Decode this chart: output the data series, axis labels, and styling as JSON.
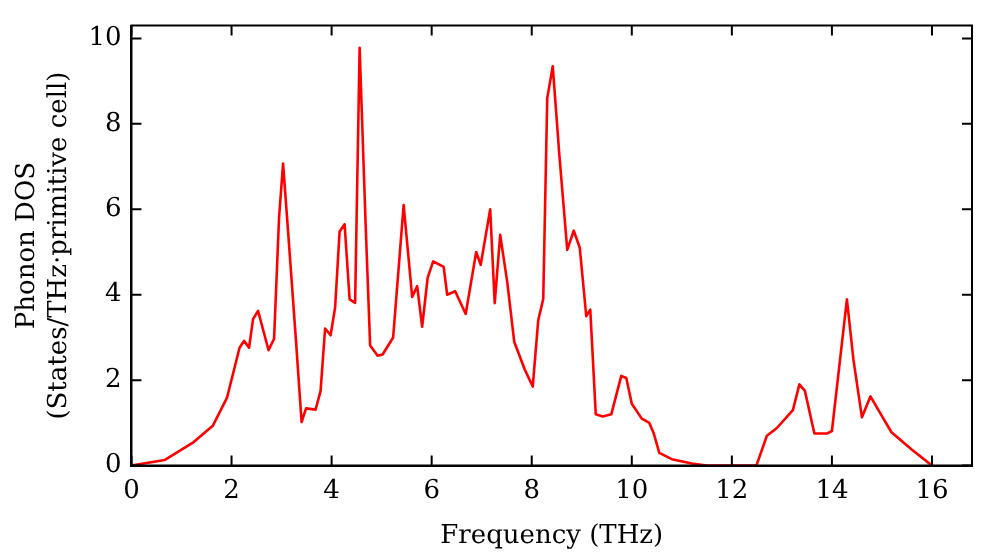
{
  "chart_data": {
    "type": "line",
    "xlabel": "Frequency (THz)",
    "ylabel": "Phonon DOS\n(States/THz·primitive cell)",
    "xlim": [
      0,
      16.8
    ],
    "ylim": [
      0,
      10.3
    ],
    "xticks": [
      0,
      2,
      4,
      6,
      8,
      10,
      12,
      14,
      16
    ],
    "yticks": [
      0,
      2,
      4,
      6,
      8,
      10
    ],
    "grid": false,
    "legend": false,
    "marker": "none",
    "line_style": "solid",
    "series": [
      {
        "color": "#ff0000",
        "x": [
          0,
          0.66,
          1.22,
          1.63,
          1.91,
          2.16,
          2.25,
          2.35,
          2.43,
          2.53,
          2.74,
          2.85,
          2.95,
          3.03,
          3.15,
          3.29,
          3.4,
          3.49,
          3.68,
          3.78,
          3.87,
          3.98,
          4.07,
          4.16,
          4.26,
          4.36,
          4.47,
          4.56,
          4.68,
          4.77,
          4.92,
          5.02,
          5.23,
          5.44,
          5.61,
          5.71,
          5.81,
          5.92,
          6.03,
          6.24,
          6.31,
          6.47,
          6.68,
          6.89,
          6.98,
          7.17,
          7.26,
          7.37,
          7.51,
          7.65,
          7.86,
          8.02,
          8.13,
          8.23,
          8.31,
          8.42,
          8.55,
          8.71,
          8.84,
          8.96,
          9.09,
          9.17,
          9.28,
          9.42,
          9.59,
          9.79,
          9.89,
          10.0,
          10.2,
          10.35,
          10.44,
          10.55,
          10.8,
          11.2,
          11.5,
          12.49,
          12.7,
          12.9,
          13.22,
          13.35,
          13.46,
          13.65,
          13.9,
          14.0,
          14.3,
          14.43,
          14.6,
          14.77,
          14.98,
          15.19,
          15.6,
          16.0
        ],
        "values": [
          0,
          0.13,
          0.53,
          0.94,
          1.59,
          2.76,
          2.92,
          2.76,
          3.43,
          3.62,
          2.7,
          2.97,
          5.81,
          7.07,
          5.16,
          2.89,
          1.02,
          1.34,
          1.31,
          1.75,
          3.21,
          3.05,
          3.7,
          5.48,
          5.65,
          3.89,
          3.81,
          9.78,
          5.65,
          2.81,
          2.57,
          2.6,
          3.0,
          6.1,
          3.95,
          4.2,
          3.25,
          4.4,
          4.78,
          4.65,
          4.0,
          4.08,
          3.55,
          5.0,
          4.7,
          6.0,
          3.8,
          5.4,
          4.3,
          2.9,
          2.25,
          1.85,
          3.4,
          3.9,
          8.6,
          9.35,
          7.3,
          5.05,
          5.5,
          5.1,
          3.5,
          3.65,
          1.2,
          1.15,
          1.2,
          2.1,
          2.05,
          1.45,
          1.1,
          1.0,
          0.75,
          0.3,
          0.15,
          0.05,
          0,
          0,
          0.7,
          0.88,
          1.3,
          1.9,
          1.75,
          0.75,
          0.75,
          0.81,
          3.89,
          2.48,
          1.13,
          1.62,
          1.2,
          0.78,
          0.37,
          0
        ]
      }
    ]
  }
}
